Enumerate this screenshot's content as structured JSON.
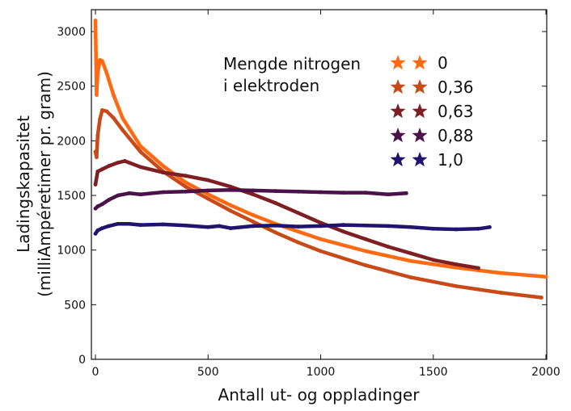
{
  "chart_data": {
    "type": "scatter",
    "title": "",
    "xlabel": "Antall ut- og oppladinger",
    "ylabel_line1": "Ladingskapasitet",
    "ylabel_line2": "(milliAmpéretimer pr. gram)",
    "xlim": [
      0,
      2000
    ],
    "ylim": [
      0,
      3200
    ],
    "xticks": [
      0,
      500,
      1000,
      1500,
      2000
    ],
    "yticks": [
      0,
      500,
      1000,
      1500,
      2000,
      2500,
      3000
    ],
    "grid": false,
    "legend_title_line1": "Mengde nitrogen",
    "legend_title_line2": "i elektroden",
    "legend_position": "top-right",
    "series": [
      {
        "name": "0",
        "color": "#ff6a13",
        "x": [
          0,
          5,
          10,
          20,
          30,
          50,
          80,
          120,
          200,
          300,
          400,
          500,
          600,
          700,
          800,
          900,
          1000,
          1200,
          1400,
          1600,
          1800,
          2000
        ],
        "y": [
          3100,
          2420,
          2620,
          2740,
          2730,
          2620,
          2420,
          2210,
          1950,
          1770,
          1620,
          1510,
          1410,
          1320,
          1240,
          1170,
          1100,
          990,
          900,
          840,
          790,
          755
        ]
      },
      {
        "name": "0,36",
        "color": "#c84a19",
        "x": [
          0,
          5,
          10,
          20,
          30,
          50,
          80,
          120,
          200,
          300,
          400,
          500,
          600,
          700,
          800,
          900,
          1000,
          1200,
          1400,
          1600,
          1800,
          1980
        ],
        "y": [
          1900,
          1850,
          2050,
          2200,
          2280,
          2270,
          2210,
          2100,
          1900,
          1720,
          1580,
          1470,
          1360,
          1260,
          1160,
          1070,
          990,
          860,
          750,
          670,
          610,
          565
        ]
      },
      {
        "name": "0,63",
        "color": "#7d1f23",
        "x": [
          0,
          10,
          30,
          60,
          100,
          130,
          200,
          300,
          400,
          500,
          600,
          700,
          800,
          900,
          1000,
          1100,
          1200,
          1300,
          1400,
          1500,
          1600,
          1700
        ],
        "y": [
          1600,
          1720,
          1740,
          1770,
          1800,
          1815,
          1760,
          1710,
          1680,
          1640,
          1580,
          1510,
          1430,
          1340,
          1250,
          1170,
          1100,
          1030,
          970,
          910,
          870,
          835
        ]
      },
      {
        "name": "0,88",
        "color": "#4a1248",
        "x": [
          0,
          10,
          30,
          60,
          100,
          150,
          200,
          300,
          400,
          500,
          600,
          700,
          800,
          900,
          1000,
          1100,
          1200,
          1300,
          1380
        ],
        "y": [
          1380,
          1400,
          1420,
          1460,
          1500,
          1520,
          1510,
          1530,
          1535,
          1545,
          1550,
          1545,
          1540,
          1535,
          1530,
          1525,
          1525,
          1510,
          1520
        ]
      },
      {
        "name": "1,0",
        "color": "#20146e",
        "x": [
          0,
          10,
          30,
          60,
          100,
          150,
          200,
          300,
          400,
          500,
          550,
          600,
          700,
          800,
          900,
          1000,
          1100,
          1200,
          1300,
          1400,
          1500,
          1600,
          1700,
          1750
        ],
        "y": [
          1150,
          1180,
          1200,
          1220,
          1240,
          1240,
          1230,
          1235,
          1225,
          1210,
          1220,
          1200,
          1220,
          1225,
          1215,
          1220,
          1230,
          1225,
          1220,
          1210,
          1195,
          1190,
          1195,
          1210
        ]
      }
    ]
  }
}
